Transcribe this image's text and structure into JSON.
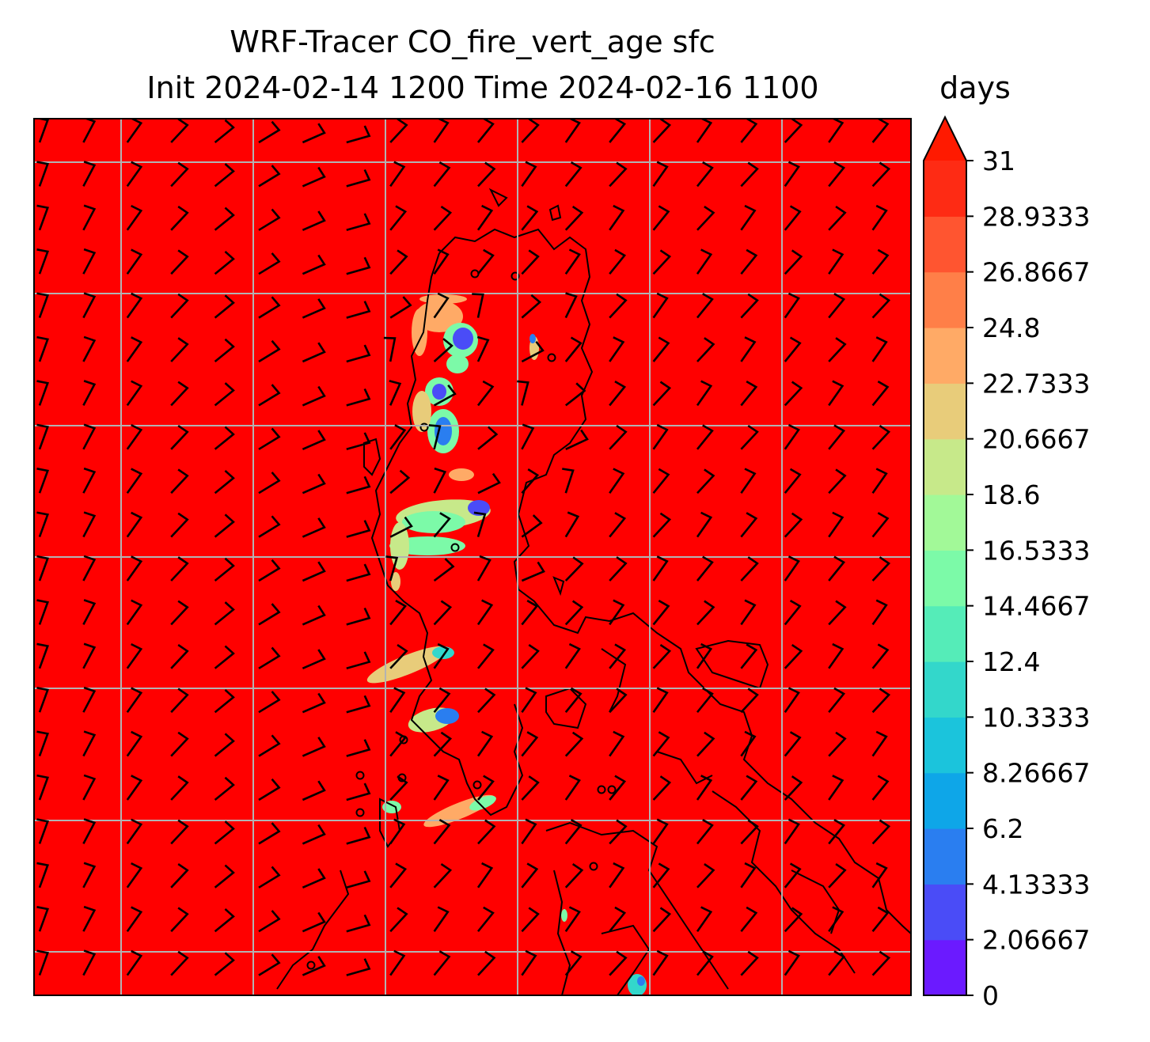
{
  "chart_data": {
    "type": "heatmap",
    "title_line1": "WRF-Tracer CO_fire_vert_age sfc",
    "title_line2": "Init 2024-02-14 1200 Time 2024-02-16 1100",
    "colorbar": {
      "units": "days",
      "extend": "max",
      "range": [
        0,
        31
      ],
      "ticks": [
        "0",
        "2.06667",
        "4.13333",
        "6.2",
        "8.26667",
        "10.3333",
        "12.4",
        "14.4667",
        "16.5333",
        "18.6",
        "20.6667",
        "22.7333",
        "24.8",
        "26.8667",
        "28.9333",
        "31"
      ],
      "colors": [
        "#6b1aff",
        "#4a4cf7",
        "#2a7ef0",
        "#0ea6e8",
        "#1bc4dc",
        "#33d7cb",
        "#55ecb8",
        "#7cfaa8",
        "#a2f998",
        "#c7e98a",
        "#e8cc7a",
        "#ffaa66",
        "#ff7f48",
        "#ff5530",
        "#fe2b14"
      ],
      "over_color": "#ff1a00"
    },
    "background_value_days": 31,
    "background_color": "#ff0000",
    "grid": true,
    "overlays": [
      "coastlines",
      "wind barbs",
      "gridlines"
    ]
  }
}
